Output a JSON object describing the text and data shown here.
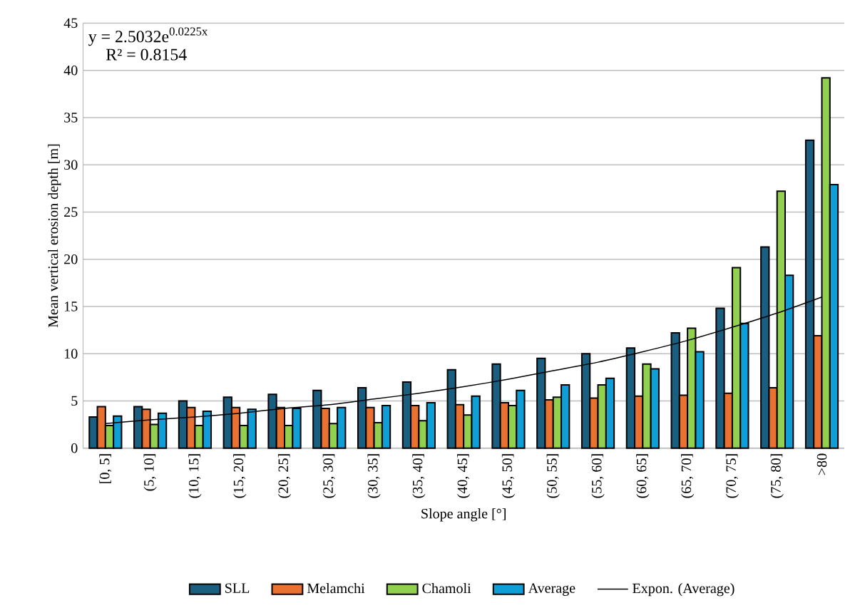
{
  "chart_data": {
    "type": "bar",
    "categories": [
      "[0, 5]",
      "(5, 10]",
      "(10, 15]",
      "(15, 20]",
      "(20, 25]",
      "(25, 30]",
      "(30, 35]",
      "(35, 40]",
      "(40, 45]",
      "(45, 50]",
      "(50, 55]",
      "(55, 60]",
      "(60, 65]",
      "(65, 70]",
      "(70, 75]",
      "(75, 80]",
      ">80"
    ],
    "series": [
      {
        "name": "SLL",
        "color": "#1a5e80",
        "values": [
          3.3,
          4.4,
          5.0,
          5.4,
          5.7,
          6.1,
          6.4,
          7.0,
          8.3,
          8.9,
          9.5,
          10.0,
          10.6,
          12.2,
          14.8,
          21.3,
          32.6
        ]
      },
      {
        "name": "Melamchi",
        "color": "#e97132",
        "values": [
          4.4,
          4.1,
          4.3,
          4.3,
          4.3,
          4.2,
          4.3,
          4.5,
          4.6,
          4.8,
          5.1,
          5.3,
          5.5,
          5.6,
          5.8,
          6.4,
          11.9
        ]
      },
      {
        "name": "Chamoli",
        "color": "#92d050",
        "values": [
          2.4,
          2.5,
          2.4,
          2.4,
          2.4,
          2.6,
          2.7,
          2.9,
          3.5,
          4.5,
          5.4,
          6.7,
          8.9,
          12.7,
          19.1,
          27.2,
          39.2
        ]
      },
      {
        "name": "Average",
        "color": "#0f9ed5",
        "values": [
          3.4,
          3.7,
          3.9,
          4.1,
          4.2,
          4.3,
          4.5,
          4.8,
          5.5,
          6.1,
          6.7,
          7.4,
          8.4,
          10.2,
          13.2,
          18.3,
          27.9
        ]
      },
      {
        "name": "Expon. (Average)",
        "type": "line",
        "color": "#000000",
        "values": [
          2.6,
          3.0,
          3.3,
          3.7,
          4.2,
          4.6,
          5.2,
          5.8,
          6.5,
          7.3,
          8.2,
          9.1,
          10.2,
          11.4,
          12.8,
          14.3,
          16.0
        ]
      }
    ],
    "xlabel": "Slope angle [°]",
    "ylabel": "Mean vertical erosion depth [m]",
    "ylim": [
      0,
      45
    ],
    "yticks": [
      0,
      5,
      10,
      15,
      20,
      25,
      30,
      35,
      40,
      45
    ],
    "grid": "y",
    "legend": "bottom",
    "annotations": [
      "y = 2.5032e$^{0.0225x}$",
      "R² = 0.8154"
    ]
  }
}
